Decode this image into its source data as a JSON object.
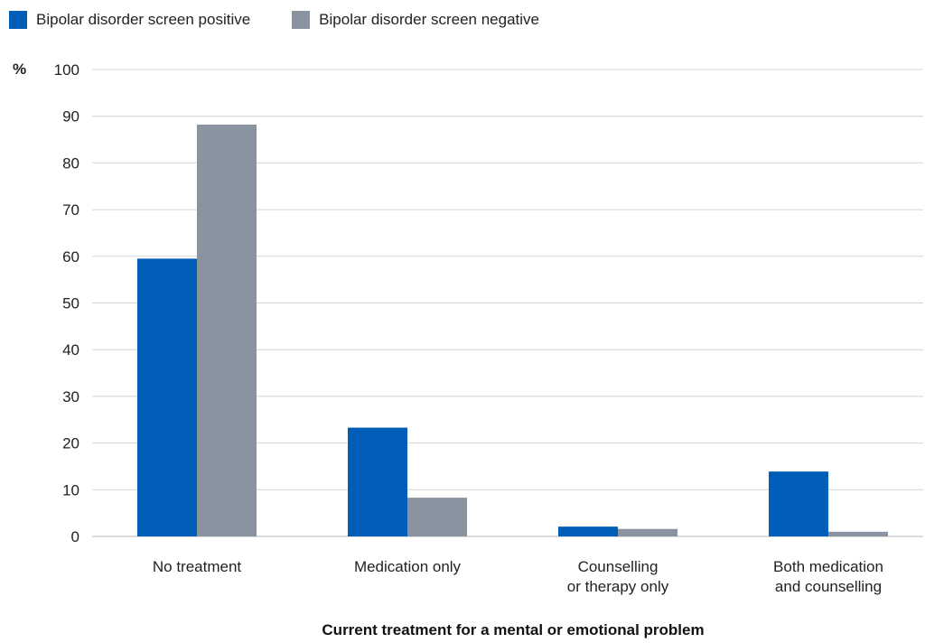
{
  "chart_data": {
    "type": "bar",
    "categories": [
      [
        "No treatment"
      ],
      [
        "Medication only"
      ],
      [
        "Counselling",
        "or therapy only"
      ],
      [
        "Both medication",
        "and counselling"
      ]
    ],
    "series": [
      {
        "name": "Bipolar disorder screen positive",
        "color": "#005EB8",
        "values": [
          59.5,
          23.3,
          2.1,
          13.9
        ]
      },
      {
        "name": "Bipolar disorder screen negative",
        "color": "#8994A0",
        "values": [
          88.2,
          8.3,
          1.6,
          1.0
        ]
      }
    ],
    "y_unit": "%",
    "yticks": [
      0,
      10,
      20,
      30,
      40,
      50,
      60,
      70,
      80,
      90,
      100
    ],
    "ylim": [
      0,
      100
    ],
    "xlabel": "Current treatment for a mental or emotional problem",
    "grid": true,
    "legend_position": "top-left"
  }
}
